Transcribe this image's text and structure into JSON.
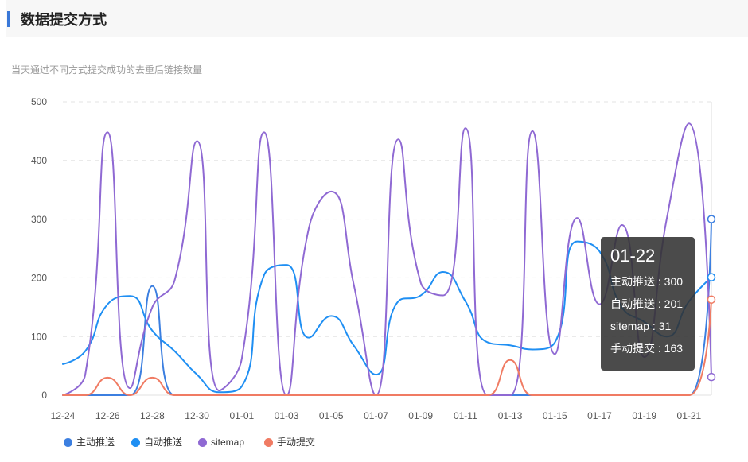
{
  "section": {
    "title": "数据提交方式",
    "subtitle": "当天通过不同方式提交成功的去重后链接数量"
  },
  "colors": {
    "accent": "#3a78d8"
  },
  "chart_data": {
    "type": "line",
    "smooth": true,
    "x": [
      "12-24",
      "12-25",
      "12-26",
      "12-27",
      "12-28",
      "12-29",
      "12-30",
      "12-31",
      "01-01",
      "01-02",
      "01-03",
      "01-04",
      "01-05",
      "01-06",
      "01-07",
      "01-08",
      "01-09",
      "01-10",
      "01-11",
      "01-12",
      "01-13",
      "01-14",
      "01-15",
      "01-16",
      "01-17",
      "01-18",
      "01-19",
      "01-20",
      "01-21",
      "01-22"
    ],
    "ylim": [
      0,
      500
    ],
    "yticks": [
      0,
      100,
      200,
      300,
      400,
      500
    ],
    "grid": true,
    "legend_position": "bottom-left",
    "series": [
      {
        "name": "主动推送",
        "color": "#3c7fe0",
        "values": [
          0,
          0,
          0,
          0,
          186,
          0,
          0,
          0,
          0,
          0,
          0,
          0,
          0,
          0,
          0,
          0,
          0,
          0,
          0,
          0,
          0,
          0,
          0,
          0,
          0,
          0,
          0,
          0,
          0,
          300
        ]
      },
      {
        "name": "自动推送",
        "color": "#1f8ff3",
        "values": [
          53,
          75,
          155,
          169,
          110,
          75,
          35,
          5,
          15,
          205,
          222,
          98,
          135,
          85,
          35,
          160,
          170,
          210,
          160,
          90,
          85,
          78,
          90,
          262,
          245,
          150,
          125,
          100,
          160,
          201
        ]
      },
      {
        "name": "sitemap",
        "color": "#8f69d3",
        "values": [
          0,
          35,
          448,
          12,
          150,
          196,
          433,
          8,
          62,
          448,
          0,
          285,
          347,
          190,
          0,
          436,
          192,
          170,
          455,
          0,
          0,
          450,
          70,
          302,
          155,
          290,
          65,
          300,
          463,
          31
        ]
      },
      {
        "name": "手动提交",
        "color": "#f07b63",
        "values": [
          0,
          0,
          30,
          0,
          30,
          0,
          0,
          0,
          0,
          0,
          0,
          0,
          0,
          0,
          0,
          0,
          0,
          0,
          0,
          0,
          60,
          0,
          0,
          0,
          0,
          0,
          0,
          0,
          0,
          163
        ]
      }
    ],
    "tooltip": {
      "x": "01-22",
      "separator": " : "
    }
  }
}
